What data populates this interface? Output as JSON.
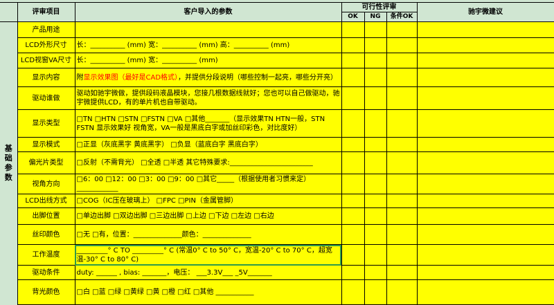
{
  "header": {
    "item": "评审项目",
    "params": "客户导入的参数",
    "feasibility": "可行性评审",
    "ok": "OK",
    "ng": "NG",
    "cond_ok": "条件OK",
    "suggestion": "驰宇微建议"
  },
  "group": "基础参数",
  "rows": [
    {
      "label": "产品用途",
      "content": ""
    },
    {
      "label": "LCD外形尺寸",
      "content": "长：__________ (mm)  宽：__________ (mm)  高：__________ (mm)"
    },
    {
      "label": "LCD视窗VA尺寸",
      "content": "长：__________ (mm)  宽：__________ (mm)"
    },
    {
      "label": "显示内容",
      "prefix": "附",
      "highlight": "显示效果图（最好是CAD格式）",
      "content": "，并提供分段说明（哪些控制一起亮，哪些分开亮）"
    },
    {
      "label": "驱动谁做",
      "content": "驱动如驰宇微做，提供段码液晶模块，您接几根数据线就好；您也可以自己做驱动，驰宇微提供LCD，有的单片机也自带驱动。"
    },
    {
      "label": "显示类型",
      "content": "□TN  □HTN  □STN  □FSTN  □VA  □其他_______（显示效果TN HTN一般，STN FSTN 显示效果好 视角宽，VA一般是黑底白字或加丝印彩色，对比度好）"
    },
    {
      "label": "显示模式",
      "content": "□正显（灰底黑字 黄底黑字）  □负显（蓝底白字 黑底白字）"
    },
    {
      "label": "偏光片类型",
      "content": "□反射（不需背光）  □全透  □半透     其它特殊要求:________________________"
    },
    {
      "label": "视角方向",
      "content": "□6：00   □12：00   □3：00   □9：00  □其它_____（根据使用者习惯来定）____________"
    },
    {
      "label": "LCD出线方式",
      "content": "□COG（IC压在玻璃上）  □FPC  □PIN（金属管脚）"
    },
    {
      "label": "出脚位置",
      "content": "□单边出脚 □双边出脚 □三边出脚 □上边 □下边 □左边 □右边"
    },
    {
      "label": "丝印颜色",
      "content": "□无   □有，位置：______________颜色：______________"
    },
    {
      "label": "工作温度",
      "content": "_________° C TO _________° C  (常温0° C to 50° C，宽温-20° C to 70° C，超宽温-30° C to 80° C)"
    },
    {
      "label": "驱动条件",
      "content": "duty: ______ , bias: _______，电压： ___3.3V___ _5V_______"
    },
    {
      "label": "背光颜色",
      "content": "□白  □蓝  □绿  □黄绿  □黄  □橙   □红   □其他 ___________"
    }
  ],
  "colors": {
    "header_bg": "#d0e6d2",
    "cell_bg": "#ffff00",
    "highlight": "#ff0000",
    "selection": "#2e9a4a"
  }
}
